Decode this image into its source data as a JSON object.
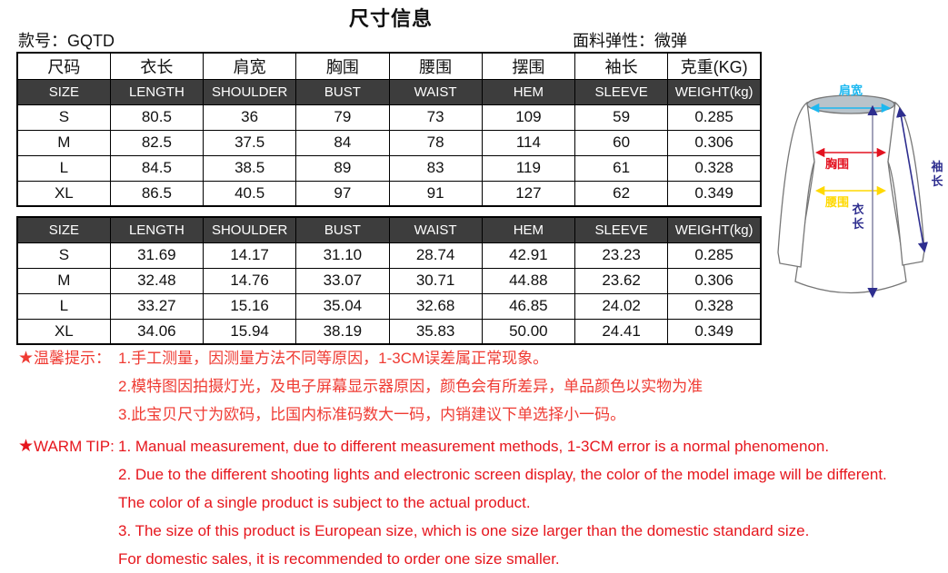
{
  "title": "尺寸信息",
  "meta": {
    "style_label": "款号：",
    "style_value": "GQTD",
    "fabric_label": "面料弹性：",
    "fabric_value": "微弹"
  },
  "tables": {
    "headers_cn": [
      "尺码",
      "衣长",
      "肩宽",
      "胸围",
      "腰围",
      "摆围",
      "袖长",
      "克重(KG)"
    ],
    "headers_en": [
      "SIZE",
      "LENGTH",
      "SHOULDER",
      "BUST",
      "WAIST",
      "HEM",
      "SLEEVE",
      "WEIGHT(kg)"
    ],
    "cm_rows": [
      [
        "S",
        "80.5",
        "36",
        "79",
        "73",
        "109",
        "59",
        "0.285"
      ],
      [
        "M",
        "82.5",
        "37.5",
        "84",
        "78",
        "114",
        "60",
        "0.306"
      ],
      [
        "L",
        "84.5",
        "38.5",
        "89",
        "83",
        "119",
        "61",
        "0.328"
      ],
      [
        "XL",
        "86.5",
        "40.5",
        "97",
        "91",
        "127",
        "62",
        "0.349"
      ]
    ],
    "inch_rows": [
      [
        "S",
        "31.69",
        "14.17",
        "31.10",
        "28.74",
        "42.91",
        "23.23",
        "0.285"
      ],
      [
        "M",
        "32.48",
        "14.76",
        "33.07",
        "30.71",
        "44.88",
        "23.62",
        "0.306"
      ],
      [
        "L",
        "33.27",
        "15.16",
        "35.04",
        "32.68",
        "46.85",
        "24.02",
        "0.328"
      ],
      [
        "XL",
        "34.06",
        "15.94",
        "38.19",
        "35.83",
        "50.00",
        "24.41",
        "0.349"
      ]
    ]
  },
  "tips_cn": {
    "star": "★",
    "label": "温馨提示：",
    "lines": [
      "1.手工测量，因测量方法不同等原因，1-3CM误差属正常现象。",
      "2.模特图因拍摄灯光，及电子屏幕显示器原因，颜色会有所差异，单品颜色以实物为准",
      "3.此宝贝尺寸为欧码，比国内标准码数大一码，内销建议下单选择小一码。"
    ]
  },
  "tips_en": {
    "star": "★",
    "label": "WARM TIP:",
    "lines": [
      "1. Manual measurement, due to different measurement methods, 1-3CM error is a normal phenomenon.",
      "2. Due to the different shooting lights and electronic screen display, the  color of the model image will be different.",
      "The color of a single product is subject to the actual product.",
      "3. The size of this product is European size, which is one size larger than the domestic standard size.",
      "For domestic sales, it is recommended to order one size smaller."
    ]
  },
  "diagram": {
    "labels": {
      "shoulder": "肩宽",
      "bust": "胸围",
      "waist": "腰围",
      "length": "衣长",
      "sleeve": "袖长"
    },
    "colors": {
      "shoulder": "#1cb8f0",
      "bust": "#e31220",
      "waist": "#ffd900",
      "navy": "#2e2e8f",
      "length_line": "#8a8aa8",
      "outline": "#777777",
      "neck_fill": "#b9c3ca"
    }
  },
  "colors": {
    "header_row_bg": "#3d3d3d",
    "header_row_text": "#ffffff",
    "tip_cn": "#ef3b33",
    "tip_en": "#e6161d"
  }
}
